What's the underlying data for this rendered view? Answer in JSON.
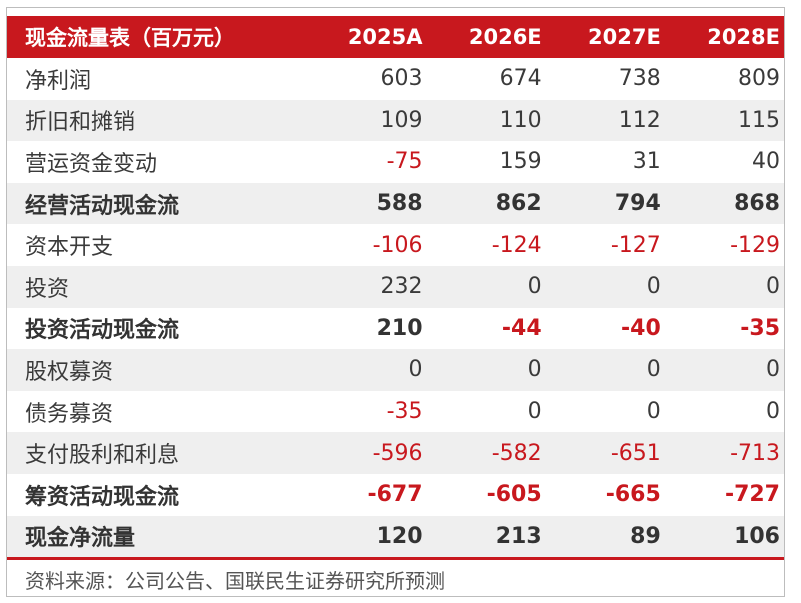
{
  "table": {
    "header": [
      "现金流量表（百万元）",
      "2025A",
      "2026E",
      "2027E",
      "2028E"
    ],
    "rows": [
      {
        "label": "净利润",
        "bold": false,
        "values": [
          "603",
          "674",
          "738",
          "809"
        ]
      },
      {
        "label": "折旧和摊销",
        "bold": false,
        "values": [
          "109",
          "110",
          "112",
          "115"
        ]
      },
      {
        "label": "营运资金变动",
        "bold": false,
        "values": [
          "-75",
          "159",
          "31",
          "40"
        ]
      },
      {
        "label": "经营活动现金流",
        "bold": true,
        "values": [
          "588",
          "862",
          "794",
          "868"
        ]
      },
      {
        "label": "资本开支",
        "bold": false,
        "values": [
          "-106",
          "-124",
          "-127",
          "-129"
        ]
      },
      {
        "label": "投资",
        "bold": false,
        "values": [
          "232",
          "0",
          "0",
          "0"
        ]
      },
      {
        "label": "投资活动现金流",
        "bold": true,
        "values": [
          "210",
          "-44",
          "-40",
          "-35"
        ]
      },
      {
        "label": "股权募资",
        "bold": false,
        "values": [
          "0",
          "0",
          "0",
          "0"
        ]
      },
      {
        "label": "债务募资",
        "bold": false,
        "values": [
          "-35",
          "0",
          "0",
          "0"
        ]
      },
      {
        "label": "支付股利和利息",
        "bold": false,
        "values": [
          "-596",
          "-582",
          "-651",
          "-713"
        ]
      },
      {
        "label": "筹资活动现金流",
        "bold": true,
        "values": [
          "-677",
          "-605",
          "-665",
          "-727"
        ]
      },
      {
        "label": "现金净流量",
        "bold": true,
        "values": [
          "120",
          "213",
          "89",
          "106"
        ]
      }
    ]
  },
  "source": "资料来源：公司公告、国联民生证券研究所预测",
  "colors": {
    "header_bg": "#c8181e",
    "negative": "#c8181e",
    "shade": "#efefef"
  }
}
